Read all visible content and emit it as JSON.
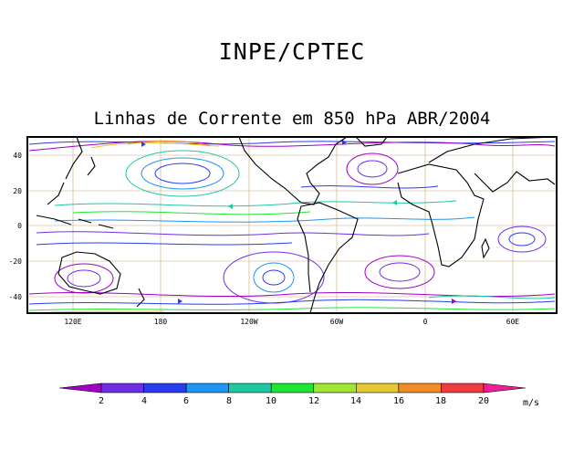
{
  "header": {
    "organization": "INPE/CPTEC",
    "subtitle": "Linhas de Corrente em 850 hPa ABR/2004"
  },
  "map": {
    "lat_labels": [
      "40",
      "20",
      "0",
      "-20",
      "-40"
    ],
    "lon_labels": [
      "120E",
      "180",
      "120W",
      "60W",
      "0",
      "60E"
    ]
  },
  "colorbar": {
    "values": [
      "2",
      "4",
      "6",
      "8",
      "10",
      "12",
      "14",
      "16",
      "18",
      "20"
    ],
    "unit": "m/s",
    "colors": [
      "#a000c8",
      "#6e2ee6",
      "#2a3cf0",
      "#1e96f5",
      "#1ec8a0",
      "#1ee632",
      "#a0e632",
      "#e6c832",
      "#f08c28",
      "#f03c3c",
      "#f01e96"
    ]
  }
}
